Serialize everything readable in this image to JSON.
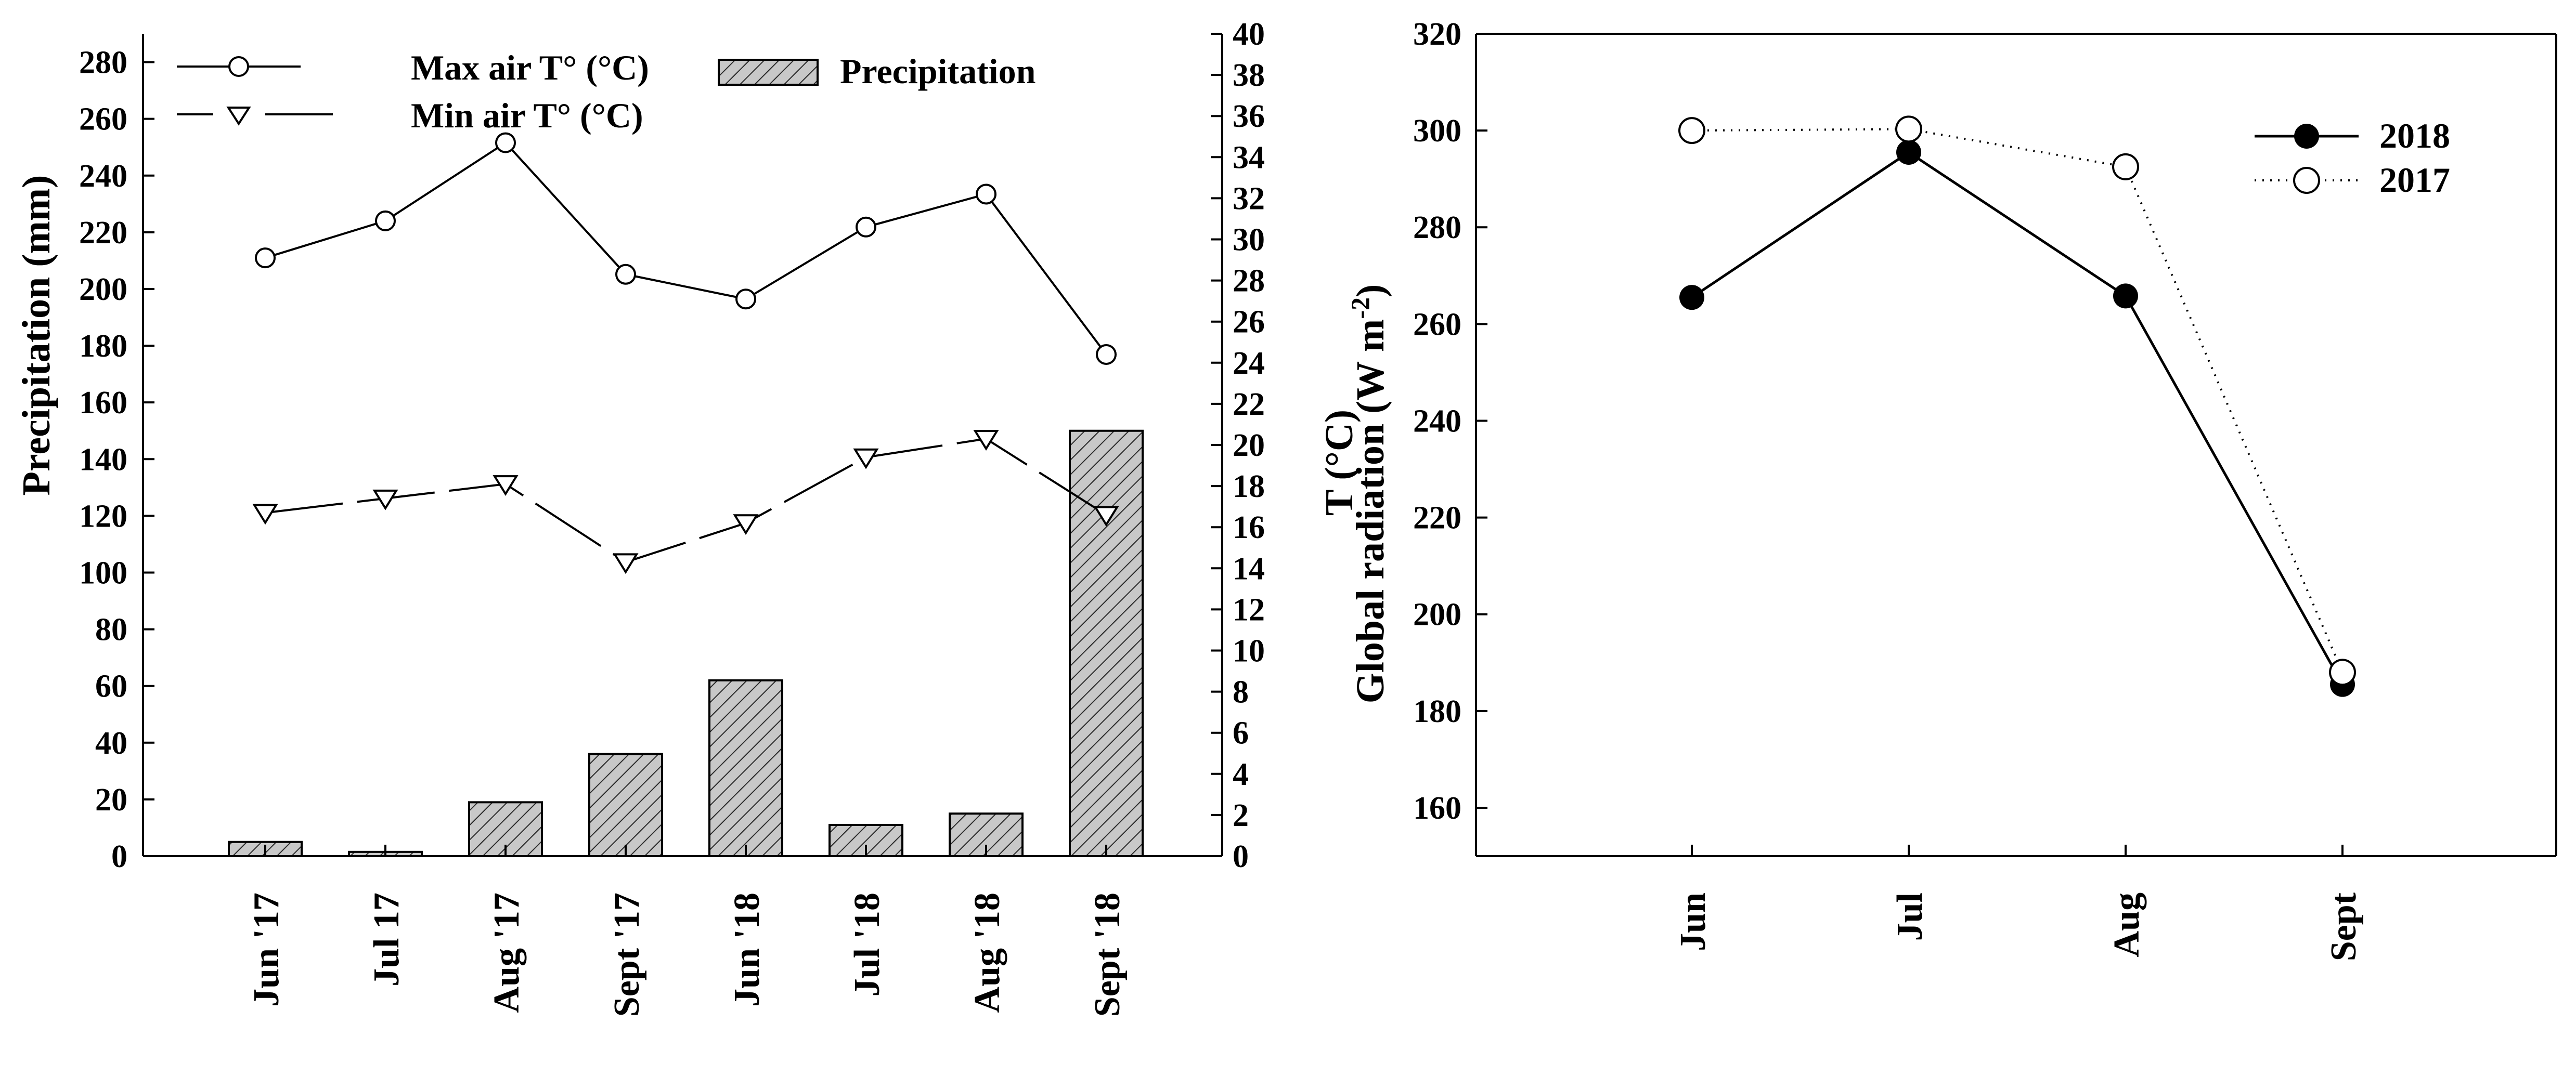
{
  "chart_data": [
    {
      "type": "bar+line",
      "title": "",
      "categories": [
        "Jun '17",
        "Jul 17",
        "Aug '17",
        "Sept '17",
        "Jun '18",
        "Jul '18",
        "Aug '18",
        "Sept '18"
      ],
      "ylabel": "Precipitation (mm)",
      "y2label": "T (°C)",
      "ylim": [
        0,
        290
      ],
      "y2lim": [
        0,
        40
      ],
      "yticks": [
        0,
        20,
        40,
        60,
        80,
        100,
        120,
        140,
        160,
        180,
        200,
        220,
        240,
        260,
        280
      ],
      "y2ticks": [
        0,
        2,
        4,
        6,
        8,
        10,
        12,
        14,
        16,
        18,
        20,
        22,
        24,
        26,
        28,
        30,
        32,
        34,
        36,
        38,
        40
      ],
      "legend": {
        "max_label": "Max air T° (°C)",
        "min_label": "Min air T° (°C)",
        "precip_label": "Precipitation"
      },
      "series": [
        {
          "name": "Precipitation",
          "axis": "left",
          "kind": "bar",
          "values": [
            5,
            1.5,
            19,
            36,
            62,
            11,
            15,
            150
          ]
        },
        {
          "name": "Max air T° (°C)",
          "axis": "right",
          "kind": "line",
          "marker": "circle",
          "values": [
            29.1,
            30.9,
            34.7,
            28.3,
            27.1,
            30.6,
            32.2,
            24.4
          ]
        },
        {
          "name": "Min air T° (°C)",
          "axis": "right",
          "kind": "line",
          "marker": "triangle-down",
          "values": [
            16.7,
            17.4,
            18.1,
            14.3,
            16.2,
            19.4,
            20.3,
            16.6
          ]
        }
      ]
    },
    {
      "type": "line",
      "title": "",
      "categories": [
        "Jun",
        "Jul",
        "Aug",
        "Sept"
      ],
      "ylabel": "Global radiation (W m",
      "ylabel_sup": "-2",
      "ylabel_tail": ")",
      "ylim": [
        150,
        320
      ],
      "yticks": [
        160,
        180,
        200,
        220,
        240,
        260,
        280,
        300,
        320
      ],
      "legend_position": "top-right",
      "series": [
        {
          "name": "2018",
          "style": "solid",
          "marker": "filled-circle",
          "values": [
            265.5,
            295.5,
            265.8,
            185.5
          ]
        },
        {
          "name": "2017",
          "style": "dotted",
          "marker": "open-circle",
          "values": [
            300,
            300.3,
            292.5,
            188
          ]
        }
      ]
    }
  ]
}
